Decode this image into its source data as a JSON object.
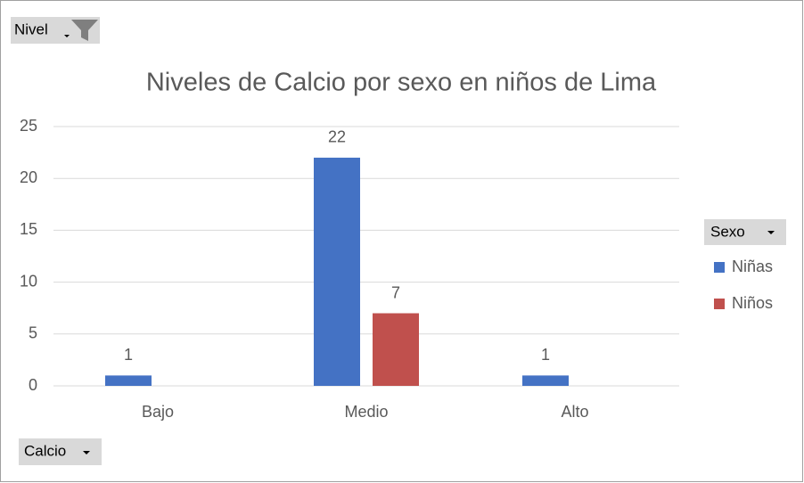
{
  "chart_data": {
    "type": "bar",
    "title": "Niveles de Calcio por sexo en niños de Lima",
    "filter_field": "Nivel",
    "legend_field": "Sexo",
    "axis_field": "Calcio",
    "categories": [
      "Bajo",
      "Medio",
      "Alto"
    ],
    "series": [
      {
        "name": "Niñas",
        "color": "#4472c4",
        "values": [
          1,
          22,
          1
        ]
      },
      {
        "name": "Niños",
        "color": "#c0504d",
        "values": [
          null,
          7,
          null
        ]
      }
    ],
    "ylim": [
      0,
      25
    ],
    "yticks": [
      0,
      5,
      10,
      15,
      20,
      25
    ],
    "grid": true,
    "legend": "right"
  }
}
